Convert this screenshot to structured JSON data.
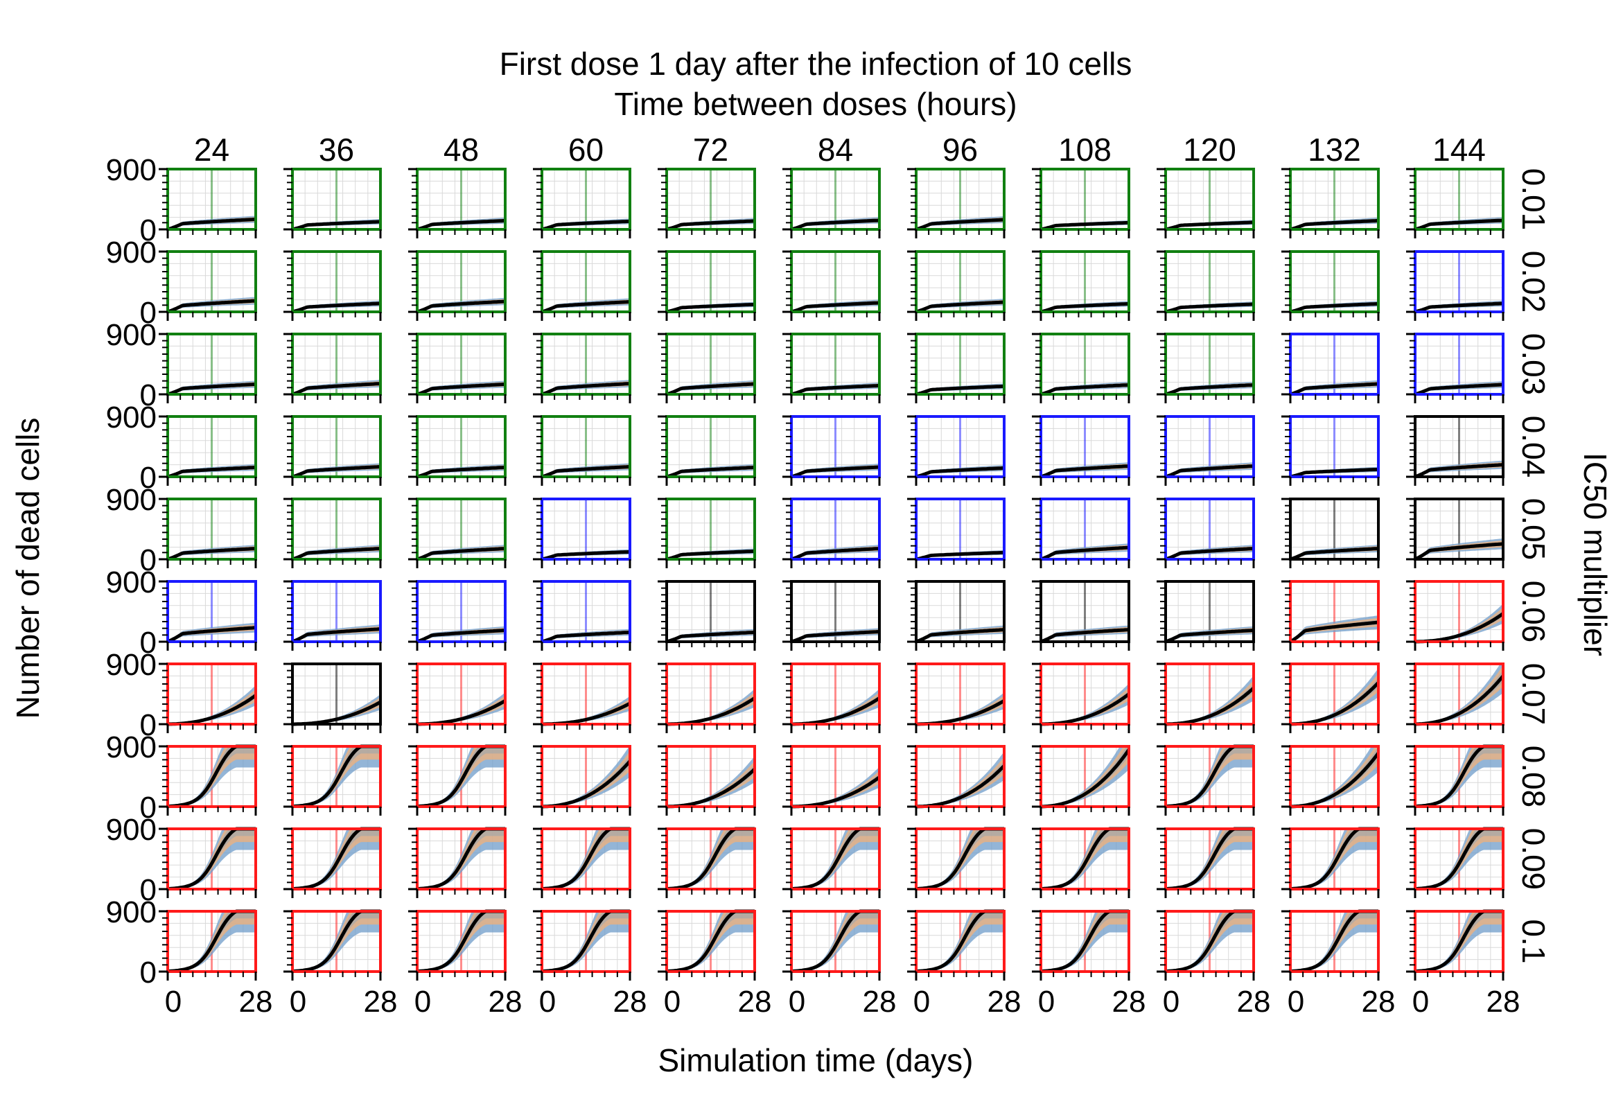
{
  "figure": {
    "title_line1": "First dose 1 day after the infection of 10 cells",
    "title_line2": "Time between doses (hours)",
    "xlabel": "Simulation time (days)",
    "ylabel": "Number of dead cells",
    "right_label": "IC50 multiplier"
  },
  "colors": {
    "green": "#118011",
    "blue": "#1a1aff",
    "black": "#000000",
    "red": "#ff1a1a",
    "band_blue": "#6f9cc9",
    "band_orange": "#f2b27a",
    "band_grey": "#a8a8a8",
    "median": "#000000"
  },
  "chart_data": {
    "type": "line",
    "layout": "small-multiples grid",
    "column_values": [
      "24",
      "36",
      "48",
      "60",
      "72",
      "84",
      "96",
      "108",
      "120",
      "132",
      "144"
    ],
    "row_values": [
      "0.01",
      "0.02",
      "0.03",
      "0.04",
      "0.05",
      "0.06",
      "0.07",
      "0.08",
      "0.09",
      "0.1"
    ],
    "xlim": [
      0,
      28
    ],
    "ylim": [
      0,
      900
    ],
    "x_tick_labels": [
      "0",
      "28"
    ],
    "y_tick_labels": [
      "0",
      "900"
    ],
    "dose_marker_day": 14,
    "grid": true,
    "frame_color_codes": [
      "GGGGGGGGGGG",
      "GGGGGGGGGGB",
      "GGGGGGGGGBB",
      "GGGGGBBBBBK",
      "GGGBGBBBBKK",
      "BBBBKKKKKRR",
      "RKRRRRRRRRR",
      "RRRRRRRRRRR",
      "RRRRRRRRRRR",
      "RRRRRRRRRRR"
    ],
    "final_dead_cells": [
      [
        150,
        115,
        130,
        120,
        125,
        135,
        145,
        100,
        105,
        130,
        135
      ],
      [
        165,
        125,
        155,
        150,
        110,
        135,
        145,
        120,
        115,
        120,
        125
      ],
      [
        150,
        160,
        150,
        160,
        155,
        130,
        120,
        140,
        140,
        155,
        145
      ],
      [
        140,
        150,
        140,
        150,
        140,
        145,
        130,
        160,
        160,
        110,
        180
      ],
      [
        160,
        160,
        160,
        110,
        120,
        160,
        100,
        175,
        160,
        160,
        230
      ],
      [
        210,
        190,
        170,
        140,
        140,
        150,
        180,
        180,
        170,
        290,
        420
      ],
      [
        430,
        330,
        350,
        310,
        390,
        390,
        350,
        450,
        540,
        620,
        720
      ],
      [
        900,
        900,
        900,
        680,
        560,
        440,
        610,
        850,
        900,
        800,
        900
      ],
      [
        900,
        900,
        900,
        900,
        900,
        900,
        900,
        900,
        900,
        900,
        900
      ],
      [
        900,
        900,
        900,
        900,
        900,
        900,
        900,
        900,
        900,
        900,
        900
      ]
    ]
  }
}
